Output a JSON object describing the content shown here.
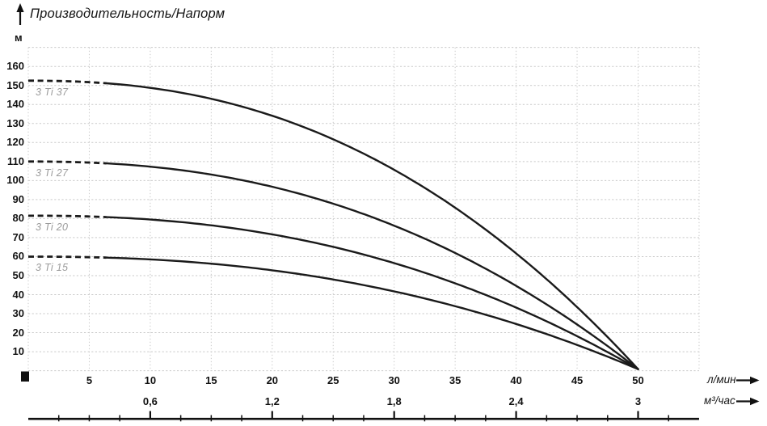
{
  "title": "Производительность/Напорм",
  "y_axis": {
    "unit": "м",
    "ticks": [
      10,
      20,
      30,
      40,
      50,
      60,
      70,
      80,
      90,
      100,
      110,
      120,
      130,
      140,
      150,
      160
    ]
  },
  "x_axis_lmin": {
    "unit": "л/мин",
    "ticks": [
      5,
      10,
      15,
      20,
      25,
      30,
      35,
      40,
      45,
      50
    ]
  },
  "x_axis_m3h": {
    "unit": "м³/час",
    "ticks": [
      {
        "label": "0,6",
        "at_lmin": 10
      },
      {
        "label": "1,2",
        "at_lmin": 20
      },
      {
        "label": "1,8",
        "at_lmin": 30
      },
      {
        "label": "2,4",
        "at_lmin": 40
      },
      {
        "label": "3",
        "at_lmin": 50
      }
    ]
  },
  "chart_data": {
    "type": "line",
    "title": "Производительность/Напорм",
    "ylabel": "м",
    "xlabel": "л/мин",
    "x2label": "м³/час",
    "xlim": [
      0,
      55
    ],
    "ylim": [
      0,
      170
    ],
    "grid": true,
    "x_lmin": [
      0,
      10,
      20,
      30,
      40,
      50
    ],
    "series": [
      {
        "name": "3 Ti 37",
        "max_head_m": 152.5,
        "head_m": [
          152.5,
          148.5,
          134,
          105,
          61,
          0
        ]
      },
      {
        "name": "3 Ti 27",
        "max_head_m": 110,
        "head_m": [
          110,
          107,
          96.5,
          76,
          44,
          0
        ]
      },
      {
        "name": "3 Ti 20",
        "max_head_m": 81.5,
        "head_m": [
          81.5,
          79.5,
          71.5,
          56.5,
          33,
          0
        ]
      },
      {
        "name": "3 Ti 15",
        "max_head_m": 60,
        "head_m": [
          60,
          58.5,
          52.5,
          41.5,
          24,
          0
        ]
      }
    ],
    "dashed_until_lmin": 6.4,
    "curve_exponent": 2.3,
    "q_max_lmin": 50,
    "colors": {
      "curve": "#1a1a1a",
      "grid": "#c9c9c9",
      "series_label": "#9b9b9b",
      "text": "#161616"
    }
  }
}
